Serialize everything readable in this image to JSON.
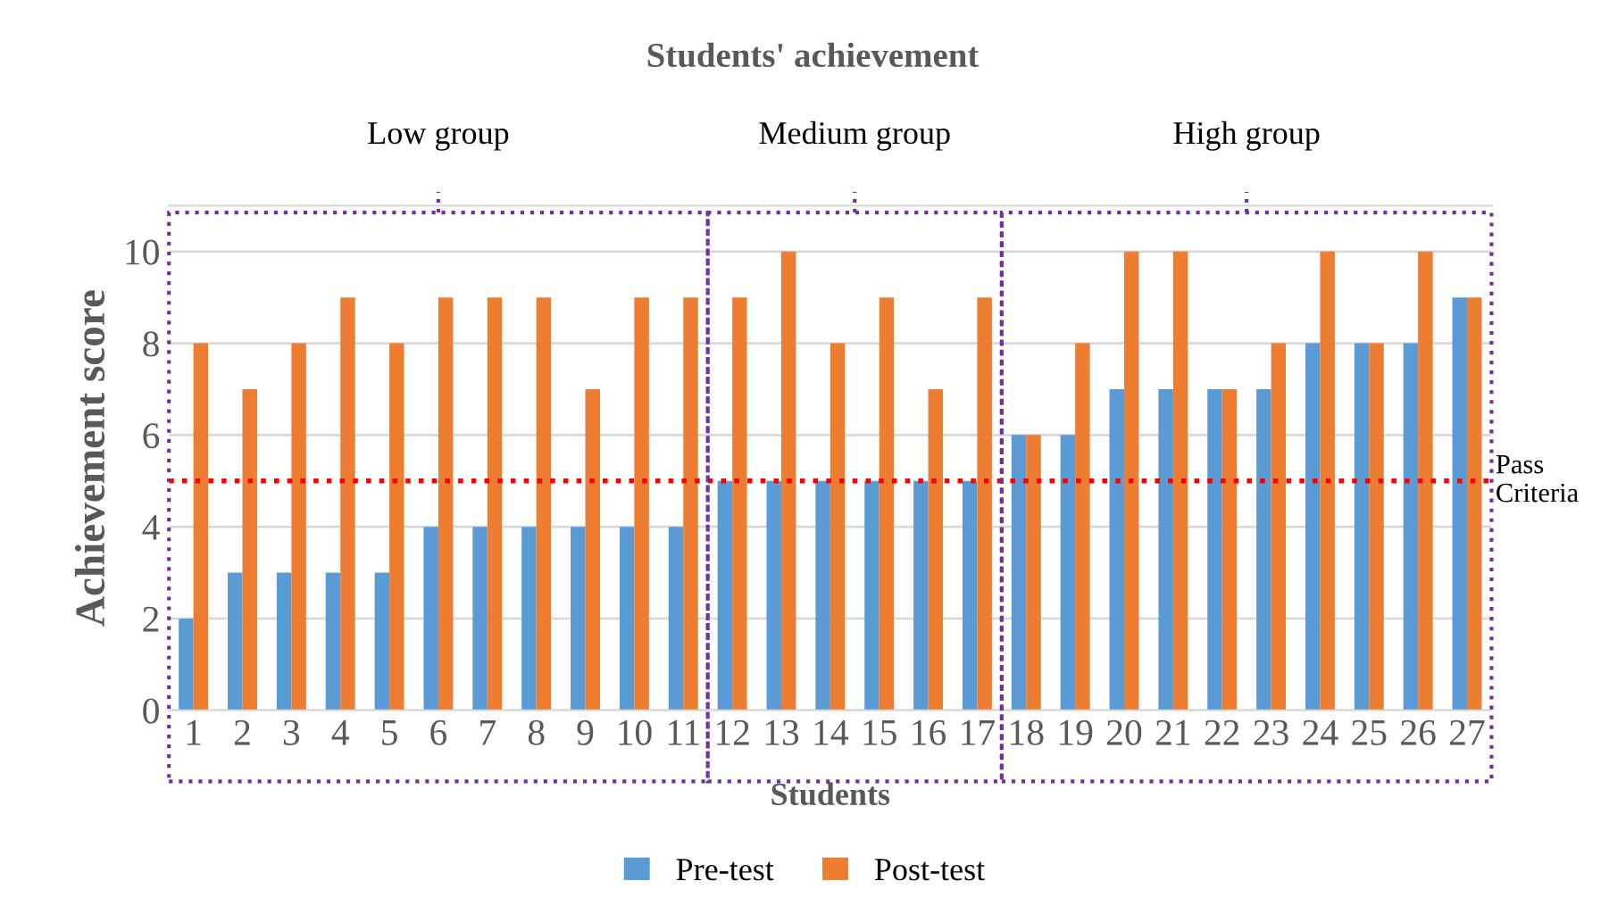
{
  "chart_data": {
    "type": "bar",
    "title": "Students' achievement",
    "xlabel": "Students",
    "ylabel": "Achievement score",
    "categories": [
      "1",
      "2",
      "3",
      "4",
      "5",
      "6",
      "7",
      "8",
      "9",
      "10",
      "11",
      "12",
      "13",
      "14",
      "15",
      "16",
      "17",
      "18",
      "19",
      "20",
      "21",
      "22",
      "23",
      "24",
      "25",
      "26",
      "27"
    ],
    "series": [
      {
        "name": "Pre-test",
        "color": "#5b9bd5",
        "values": [
          2,
          3,
          3,
          3,
          3,
          4,
          4,
          4,
          4,
          4,
          4,
          5,
          5,
          5,
          5,
          5,
          5,
          6,
          6,
          7,
          7,
          7,
          7,
          8,
          8,
          8,
          9
        ]
      },
      {
        "name": "Post-test",
        "color": "#ed7d31",
        "values": [
          8,
          7,
          8,
          9,
          8,
          9,
          9,
          9,
          7,
          9,
          9,
          9,
          10,
          8,
          9,
          7,
          9,
          6,
          8,
          10,
          10,
          7,
          8,
          10,
          8,
          10,
          9
        ]
      }
    ],
    "ylim": [
      0,
      11
    ],
    "yticks": [
      0,
      2,
      4,
      6,
      8,
      10
    ],
    "grid": "y",
    "legend": "bottom",
    "ref_lines": [
      {
        "axis": "y",
        "value": 5,
        "label": "Pass Criteria",
        "color": "#ff0000",
        "line_style": "dotted"
      }
    ],
    "annotations": [
      "Low group",
      "Medium group",
      "High group"
    ]
  }
}
